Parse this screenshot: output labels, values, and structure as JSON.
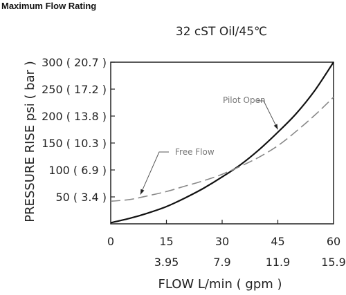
{
  "page": {
    "title": "Maximum Flow Rating"
  },
  "chart_data": {
    "type": "line",
    "title": "32 cST Oil/45℃",
    "xlabel": "FLOW L/min ( gpm )",
    "ylabel": "PRESSURE RISE psi ( bar )",
    "xlim": [
      0,
      60
    ],
    "ylim": [
      0,
      300
    ],
    "grid": false,
    "x_ticks": [
      {
        "value": 0,
        "label": "0",
        "sublabel": ""
      },
      {
        "value": 15,
        "label": "15",
        "sublabel": "3.95"
      },
      {
        "value": 30,
        "label": "30",
        "sublabel": "7.9"
      },
      {
        "value": 45,
        "label": "45",
        "sublabel": "11.9"
      },
      {
        "value": 60,
        "label": "60",
        "sublabel": "15.9"
      }
    ],
    "y_ticks": [
      {
        "value": 50,
        "label": "50 ( 3.4 )"
      },
      {
        "value": 100,
        "label": "100 ( 6.9 )"
      },
      {
        "value": 150,
        "label": "150 ( 10.3 )"
      },
      {
        "value": 200,
        "label": "200 ( 13.8 )"
      },
      {
        "value": 250,
        "label": "250 ( 17.2 )"
      },
      {
        "value": 300,
        "label": "300 ( 20.7 )"
      }
    ],
    "series": [
      {
        "name": "Pilot Open",
        "style": "solid",
        "color": "#111111",
        "x": [
          0,
          5,
          10,
          15,
          20,
          25,
          30,
          35,
          40,
          45,
          50,
          55,
          60
        ],
        "y": [
          2,
          10,
          20,
          32,
          48,
          66,
          87,
          110,
          138,
          170,
          205,
          248,
          300
        ]
      },
      {
        "name": "Free Flow",
        "style": "dashed",
        "color": "#888888",
        "x": [
          0,
          5,
          10,
          15,
          20,
          25,
          30,
          35,
          40,
          45,
          50,
          55,
          60
        ],
        "y": [
          42,
          45,
          52,
          60,
          70,
          80,
          92,
          107,
          124,
          145,
          172,
          202,
          235
        ]
      }
    ],
    "annotations": [
      {
        "text": "Pilot Open",
        "series": "Pilot Open",
        "at_x": 45
      },
      {
        "text": "Free Flow",
        "series": "Free Flow",
        "at_x": 8
      }
    ]
  }
}
